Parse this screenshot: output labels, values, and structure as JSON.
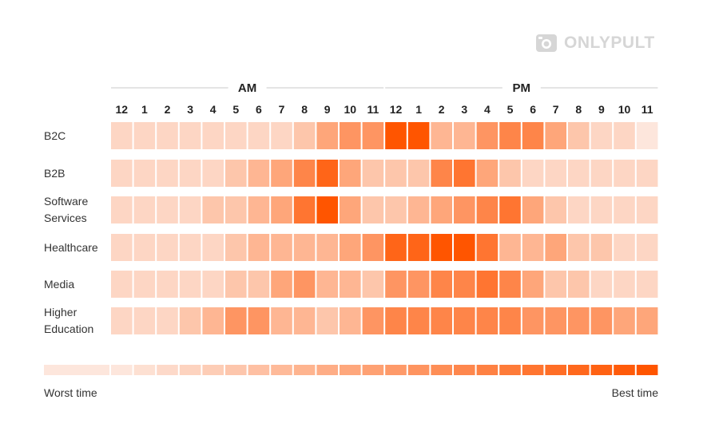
{
  "brand": {
    "name": "ONLYPULT",
    "icon": "camera-icon",
    "color": "#d6d6d6"
  },
  "chart_data": {
    "type": "heatmap",
    "periods": [
      "AM",
      "PM"
    ],
    "hours": [
      "12",
      "1",
      "2",
      "3",
      "4",
      "5",
      "6",
      "7",
      "8",
      "9",
      "10",
      "11",
      "12",
      "1",
      "2",
      "3",
      "4",
      "5",
      "6",
      "7",
      "8",
      "9",
      "10",
      "11"
    ],
    "rows": [
      {
        "label": "B2C",
        "values": [
          2,
          2,
          2,
          2,
          2,
          2,
          2,
          2,
          3,
          5,
          6,
          6,
          10,
          10,
          4,
          4,
          6,
          7,
          7,
          5,
          3,
          2,
          2,
          1
        ]
      },
      {
        "label": "B2B",
        "values": [
          2,
          2,
          2,
          2,
          2,
          3,
          4,
          5,
          7,
          9,
          5,
          3,
          3,
          3,
          7,
          8,
          5,
          3,
          2,
          2,
          2,
          2,
          2,
          2
        ]
      },
      {
        "label": "Software\nServices",
        "values": [
          2,
          2,
          2,
          2,
          3,
          3,
          4,
          5,
          8,
          10,
          5,
          3,
          3,
          4,
          5,
          6,
          7,
          8,
          5,
          3,
          2,
          2,
          2,
          2
        ]
      },
      {
        "label": "Healthcare",
        "values": [
          2,
          2,
          2,
          2,
          2,
          3,
          4,
          4,
          4,
          4,
          5,
          6,
          9,
          9,
          10,
          10,
          8,
          4,
          4,
          5,
          3,
          3,
          2,
          2
        ]
      },
      {
        "label": "Media",
        "values": [
          2,
          2,
          2,
          2,
          2,
          3,
          3,
          5,
          6,
          4,
          4,
          3,
          6,
          6,
          7,
          7,
          8,
          7,
          5,
          3,
          3,
          2,
          2,
          2
        ]
      },
      {
        "label": "Higher\nEducation",
        "values": [
          2,
          2,
          2,
          3,
          4,
          6,
          6,
          4,
          4,
          3,
          4,
          6,
          7,
          7,
          7,
          7,
          7,
          7,
          6,
          6,
          6,
          6,
          5,
          5
        ]
      }
    ],
    "scale": {
      "min": 1,
      "max": 10,
      "min_label": "Worst time",
      "max_label": "Best time",
      "low_color": "#fde6dc",
      "high_color": "#ff5500"
    }
  }
}
